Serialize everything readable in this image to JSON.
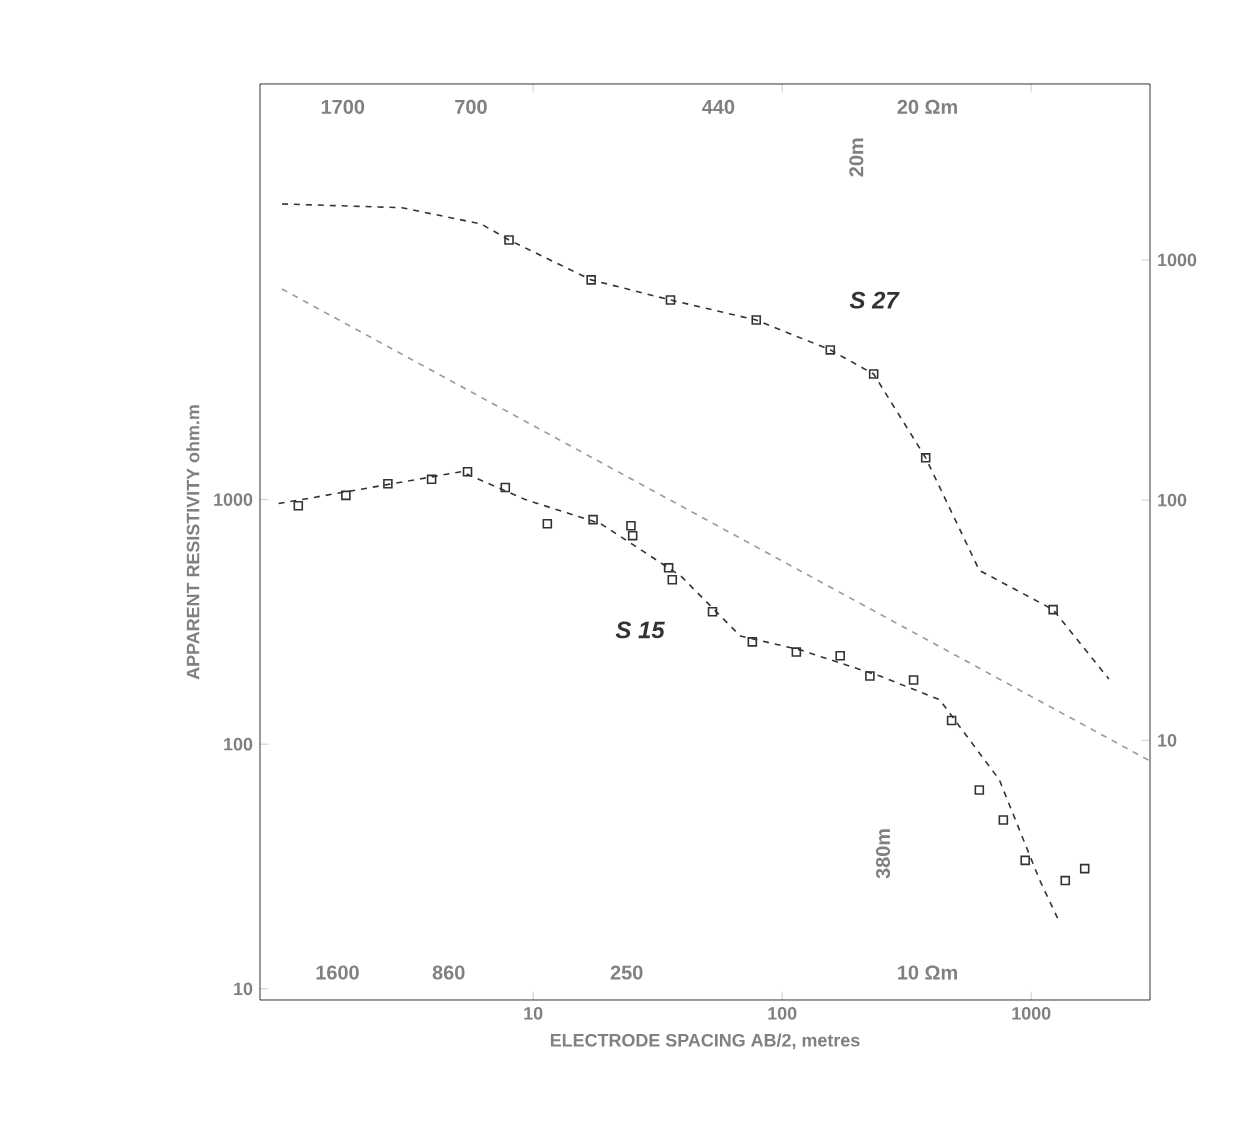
{
  "chart_data": [
    {
      "type": "line",
      "xlabel": "ELECTRODE SPACING AB/2, metres",
      "ylabel": "APPARENT RESISTIVITY ohm.m",
      "log": "xy",
      "xlim": [
        0.8,
        3000
      ],
      "xticks": [
        10,
        100,
        1000
      ],
      "ylim": [
        9,
        50000
      ],
      "yticks": [
        1000,
        100,
        10
      ],
      "series": [
        {
          "color": "#333333",
          "line_style": "dashed",
          "x": [
            0.95,
            5.15,
            9.3,
            18.7,
            39.1,
            67.9,
            118,
            247,
            429,
            745,
            1080,
            1290
          ],
          "values": [
            963,
            1300,
            1000,
            797,
            488,
            277,
            243,
            190,
            152,
            71.5,
            27.9,
            19.0
          ]
        },
        {
          "type": "scatter",
          "color": "#333333",
          "marker": "square",
          "x": [
            1.14,
            1.77,
            2.61,
            3.91,
            5.45,
            7.73,
            11.4,
            17.4,
            24.7,
            25.1,
            35.0,
            36.2,
            52.5,
            75.9,
            114,
            171,
            225,
            337,
            479,
            619,
            773,
            946,
            1370,
            1640
          ],
          "values": [
            944,
            1040,
            1160,
            1210,
            1300,
            1120,
            797,
            828,
            782,
            712,
            526,
            470,
            348,
            262,
            238,
            230,
            190,
            183,
            125,
            65,
            49,
            33.5,
            27.7,
            31
          ]
        },
        {
          "color": "#999999",
          "line_style": "dashed",
          "x": [
            0.98,
            2960
          ],
          "values": [
            7260,
            86
          ]
        }
      ],
      "annotations": [
        "S 15",
        "1700",
        "700",
        "440",
        "20 Ωm",
        "20m",
        "1600",
        "860",
        "250",
        "10 Ωm",
        "380m"
      ]
    },
    {
      "type": "line",
      "log": "xy",
      "tick_labels": "y",
      "xlim": [
        0.8,
        3000
      ],
      "ylim": [
        0.83,
        5400
      ],
      "yticks": [
        1000,
        100,
        10
      ],
      "series": [
        {
          "color": "#333333",
          "line_style": "dashed",
          "x": [
            0.98,
            2.97,
            6.2,
            8.0,
            17.1,
            35.6,
            78.7,
            156,
            233,
            377,
            619,
            1225,
            2050
          ],
          "values": [
            1710,
            1650,
            1410,
            1210,
            826,
            681,
            562,
            422,
            335,
            150,
            51,
            35,
            18
          ]
        },
        {
          "type": "scatter",
          "color": "#333333",
          "marker": "square",
          "x": [
            8.0,
            17.1,
            35.6,
            78.7,
            156,
            233,
            377,
            1225
          ],
          "values": [
            1210,
            826,
            681,
            562,
            422,
            335,
            150,
            35
          ]
        }
      ],
      "annotations": [
        "S 27"
      ]
    }
  ]
}
